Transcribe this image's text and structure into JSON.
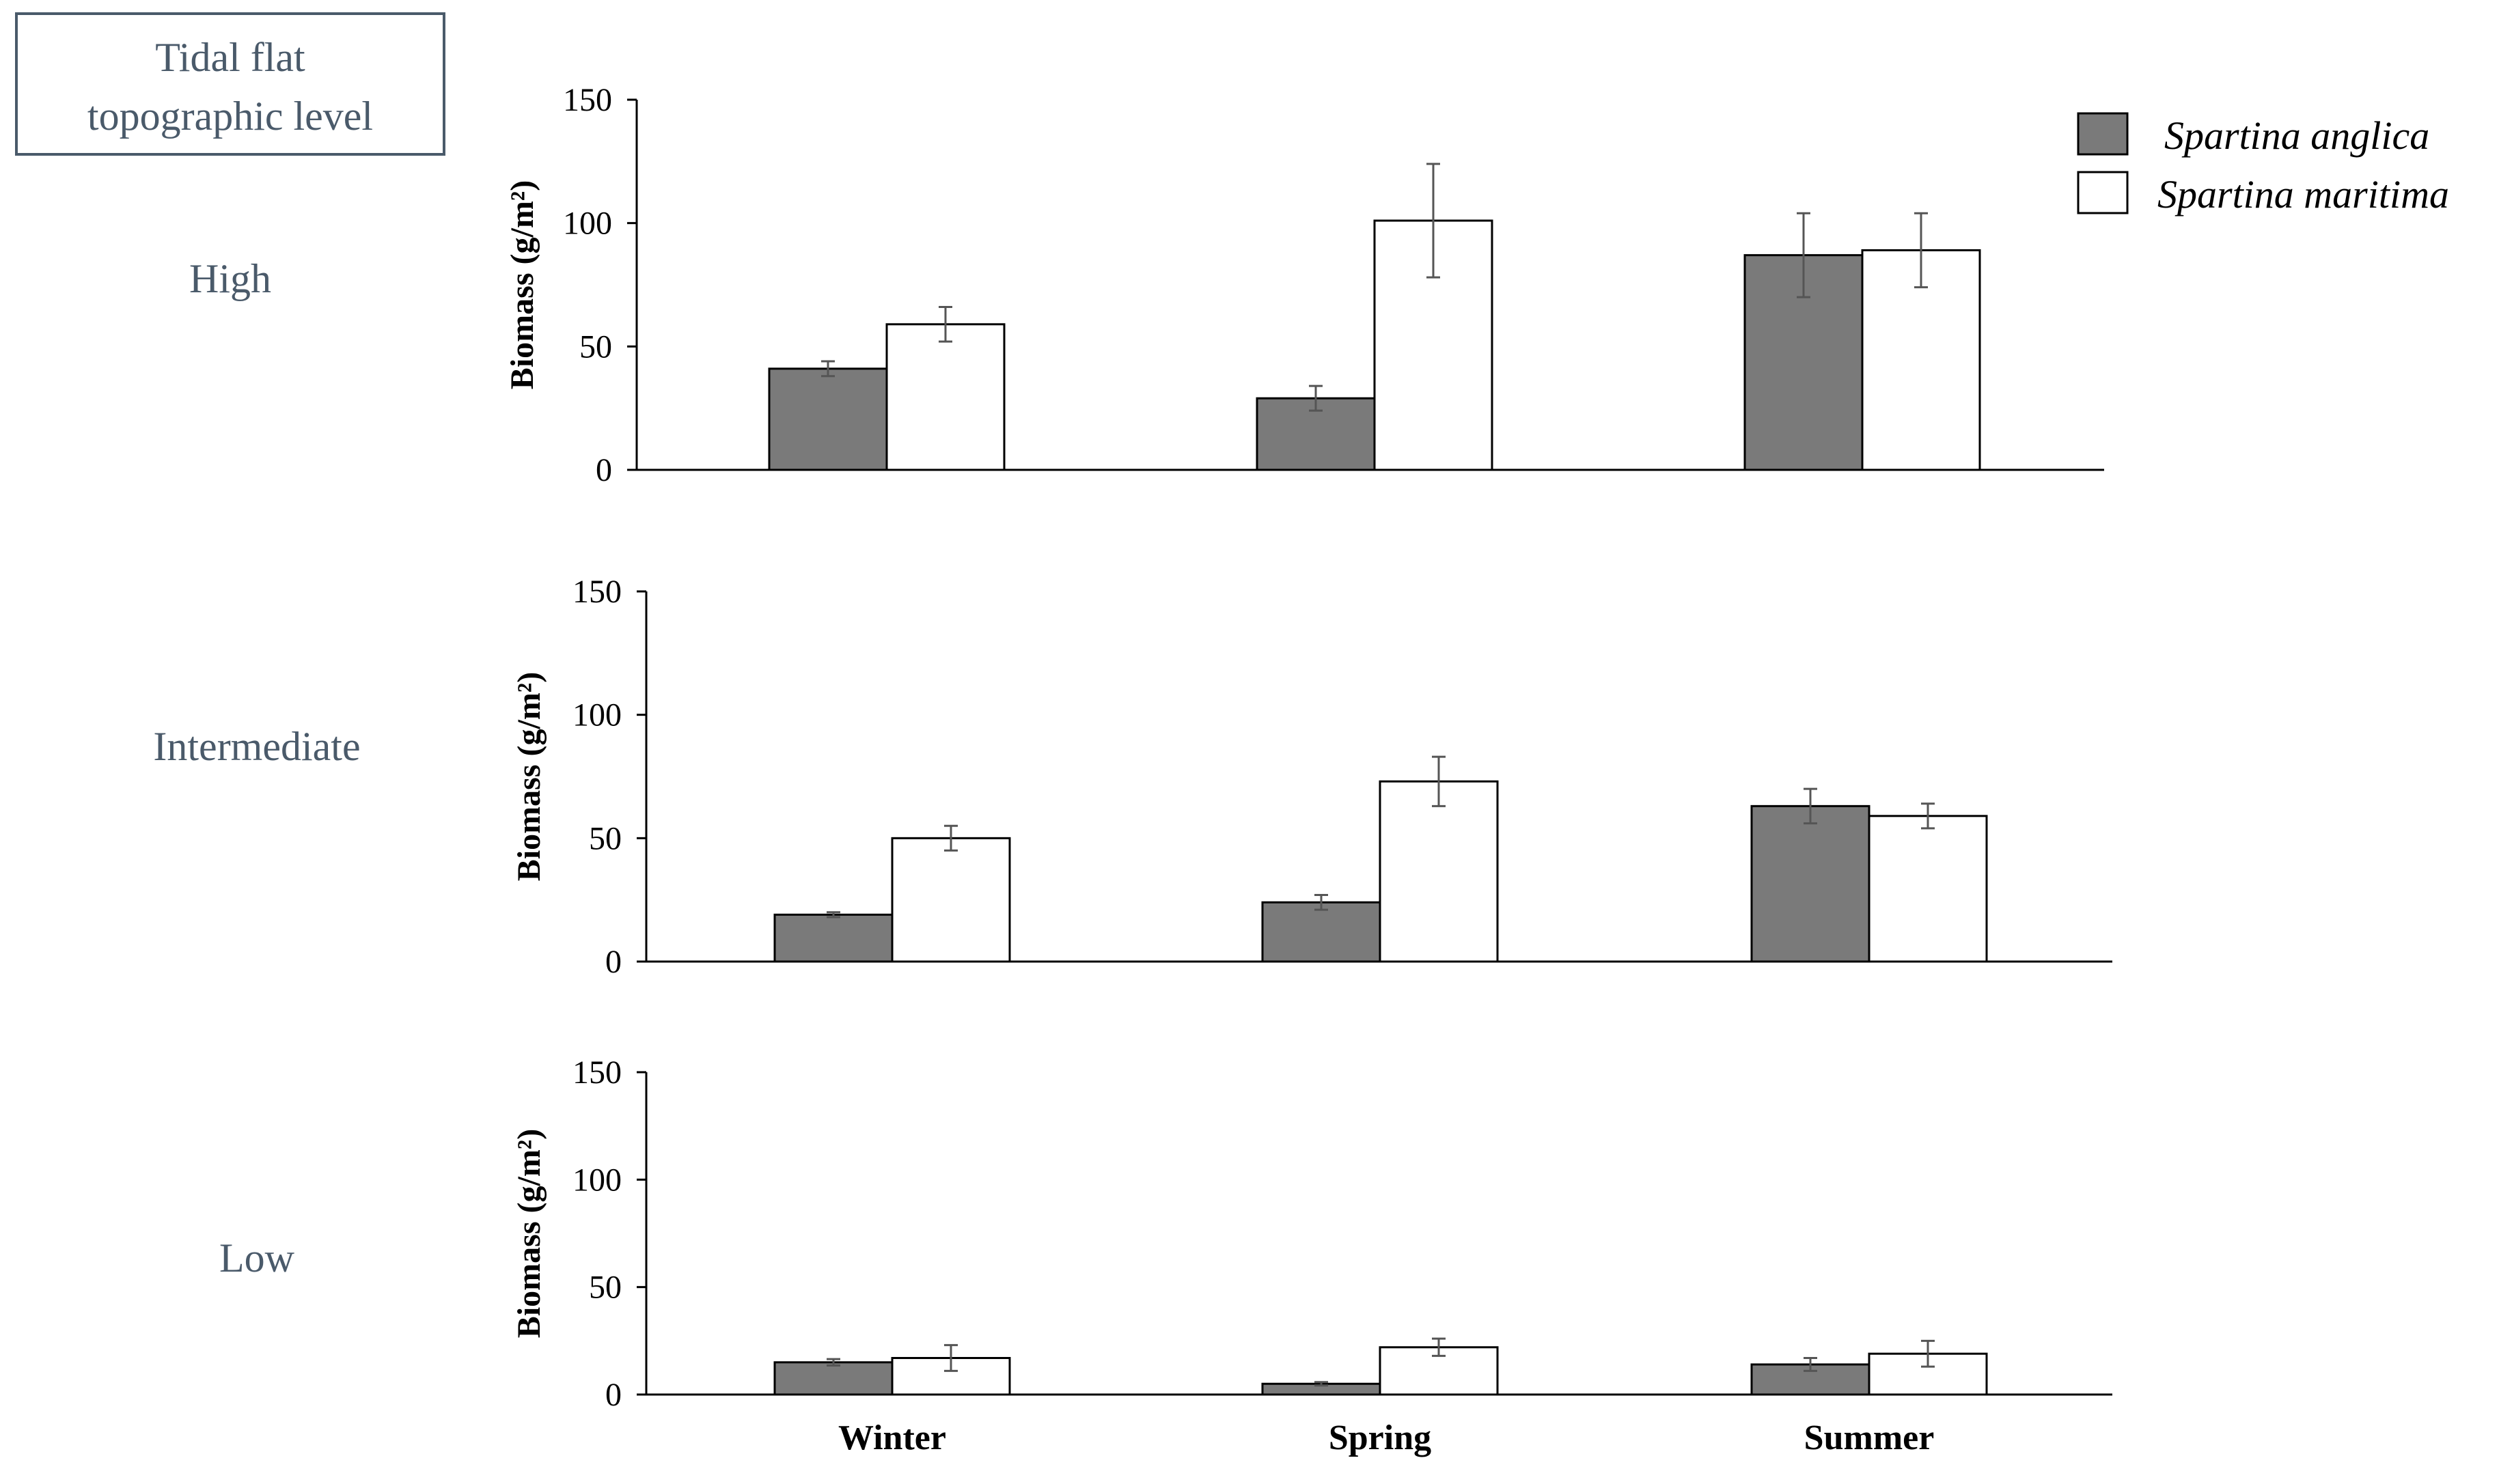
{
  "header_box": {
    "line1": "Tidal flat",
    "line2": "topographic level"
  },
  "colors": {
    "series_fill": [
      "#7a7a7a",
      "#ffffff"
    ],
    "stroke": "#000000",
    "error_bar": "#555555",
    "side_label": "#4a5a6a"
  },
  "chart_data": [
    {
      "type": "bar",
      "panel_label": "High",
      "ylabel": "Biomass (g/m²)",
      "ylim": [
        0,
        150
      ],
      "yticks": [
        "0",
        "50",
        "100",
        "150"
      ],
      "categories": [
        "Winter",
        "Spring",
        "Summer"
      ],
      "series": [
        {
          "name": "Spartina anglica",
          "values": [
            41,
            29,
            87
          ],
          "errors": [
            3,
            5,
            17
          ]
        },
        {
          "name": "Spartina maritima",
          "values": [
            59,
            101,
            89
          ],
          "errors": [
            7,
            23,
            15
          ]
        }
      ]
    },
    {
      "type": "bar",
      "panel_label": "Intermediate",
      "ylabel": "Biomass (g/m²)",
      "ylim": [
        0,
        150
      ],
      "yticks": [
        "0",
        "50",
        "100",
        "150"
      ],
      "categories": [
        "Winter",
        "Spring",
        "Summer"
      ],
      "series": [
        {
          "name": "Spartina anglica",
          "values": [
            19,
            24,
            63
          ],
          "errors": [
            1,
            3,
            7
          ]
        },
        {
          "name": "Spartina maritima",
          "values": [
            50,
            73,
            59
          ],
          "errors": [
            5,
            10,
            5
          ]
        }
      ]
    },
    {
      "type": "bar",
      "panel_label": "Low",
      "ylabel": "Biomass (g/m²)",
      "ylim": [
        0,
        150
      ],
      "yticks": [
        "0",
        "50",
        "100",
        "150"
      ],
      "categories": [
        "Winter",
        "Spring",
        "Summer"
      ],
      "show_category_labels": true,
      "series": [
        {
          "name": "Spartina anglica",
          "values": [
            15,
            5,
            14
          ],
          "errors": [
            1.5,
            0.8,
            3
          ]
        },
        {
          "name": "Spartina maritima",
          "values": [
            17,
            22,
            19
          ],
          "errors": [
            6,
            4,
            6
          ]
        }
      ]
    }
  ],
  "legend": {
    "items": [
      "Spartina anglica",
      "Spartina maritima"
    ]
  }
}
